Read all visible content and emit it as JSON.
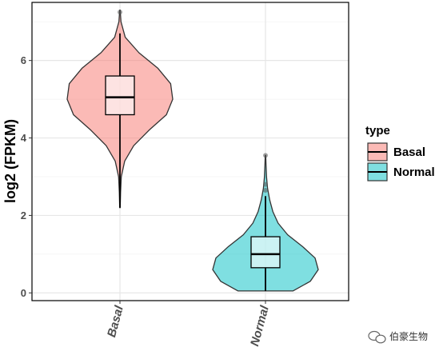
{
  "chart_data": {
    "type": "violin",
    "ylabel": "log2 (FPKM)",
    "ylim": [
      -0.2,
      7.5
    ],
    "yticks": [
      0,
      2,
      4,
      6
    ],
    "categories": [
      "Basal",
      "Normal"
    ],
    "grid": true,
    "legend": {
      "title": "type",
      "position": "right",
      "entries": [
        "Basal",
        "Normal"
      ]
    },
    "series": [
      {
        "name": "Basal",
        "color": "#F8766D",
        "min": 2.2,
        "q1": 4.6,
        "median": 5.05,
        "q3": 5.6,
        "max": 6.7,
        "outliers": [
          7.25
        ],
        "density": [
          [
            2.2,
            0.005
          ],
          [
            2.6,
            0.012
          ],
          [
            3.0,
            0.025
          ],
          [
            3.4,
            0.09
          ],
          [
            3.8,
            0.26
          ],
          [
            4.2,
            0.55
          ],
          [
            4.6,
            0.88
          ],
          [
            5.0,
            1.0
          ],
          [
            5.4,
            0.96
          ],
          [
            5.8,
            0.72
          ],
          [
            6.2,
            0.36
          ],
          [
            6.6,
            0.1
          ],
          [
            7.0,
            0.02
          ],
          [
            7.3,
            0.005
          ]
        ]
      },
      {
        "name": "Normal",
        "color": "#00BFC4",
        "min": 0.05,
        "q1": 0.65,
        "median": 1.0,
        "q3": 1.45,
        "max": 2.5,
        "outliers": [
          2.65,
          2.8,
          3.55
        ],
        "density": [
          [
            0.05,
            0.52
          ],
          [
            0.3,
            0.85
          ],
          [
            0.6,
            1.0
          ],
          [
            0.9,
            0.94
          ],
          [
            1.2,
            0.7
          ],
          [
            1.5,
            0.42
          ],
          [
            1.8,
            0.24
          ],
          [
            2.1,
            0.14
          ],
          [
            2.4,
            0.08
          ],
          [
            2.7,
            0.04
          ],
          [
            3.0,
            0.02
          ],
          [
            3.3,
            0.01
          ],
          [
            3.55,
            0.005
          ]
        ]
      }
    ]
  },
  "watermark": {
    "text": "伯豪生物"
  }
}
